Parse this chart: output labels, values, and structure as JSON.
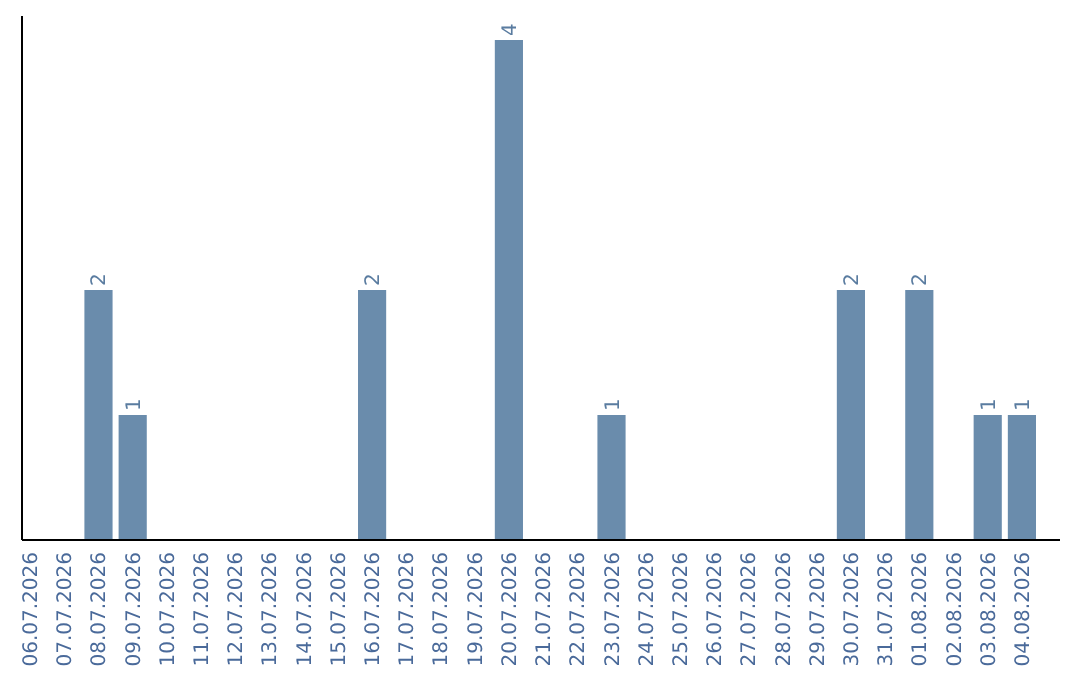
{
  "chart_data": {
    "type": "bar",
    "categories": [
      "06.07.2026",
      "07.07.2026",
      "08.07.2026",
      "09.07.2026",
      "10.07.2026",
      "11.07.2026",
      "12.07.2026",
      "13.07.2026",
      "14.07.2026",
      "15.07.2026",
      "16.07.2026",
      "17.07.2026",
      "18.07.2026",
      "19.07.2026",
      "20.07.2026",
      "21.07.2026",
      "22.07.2026",
      "23.07.2026",
      "24.07.2026",
      "25.07.2026",
      "26.07.2026",
      "27.07.2026",
      "28.07.2026",
      "29.07.2026",
      "30.07.2026",
      "31.07.2026",
      "01.08.2026",
      "02.08.2026",
      "03.08.2026",
      "04.08.2026"
    ],
    "values": [
      0,
      0,
      2,
      1,
      0,
      0,
      0,
      0,
      0,
      0,
      2,
      0,
      0,
      0,
      4,
      0,
      0,
      1,
      0,
      0,
      0,
      0,
      0,
      0,
      2,
      0,
      2,
      0,
      1,
      1
    ],
    "value_labels": [
      null,
      null,
      "2",
      "1",
      null,
      null,
      null,
      null,
      null,
      null,
      "2",
      null,
      null,
      null,
      "4",
      null,
      null,
      "1",
      null,
      null,
      null,
      null,
      null,
      null,
      "2",
      null,
      "2",
      null,
      "1",
      "1"
    ],
    "color": "#6a8cac",
    "tick_labels": "x"
  }
}
